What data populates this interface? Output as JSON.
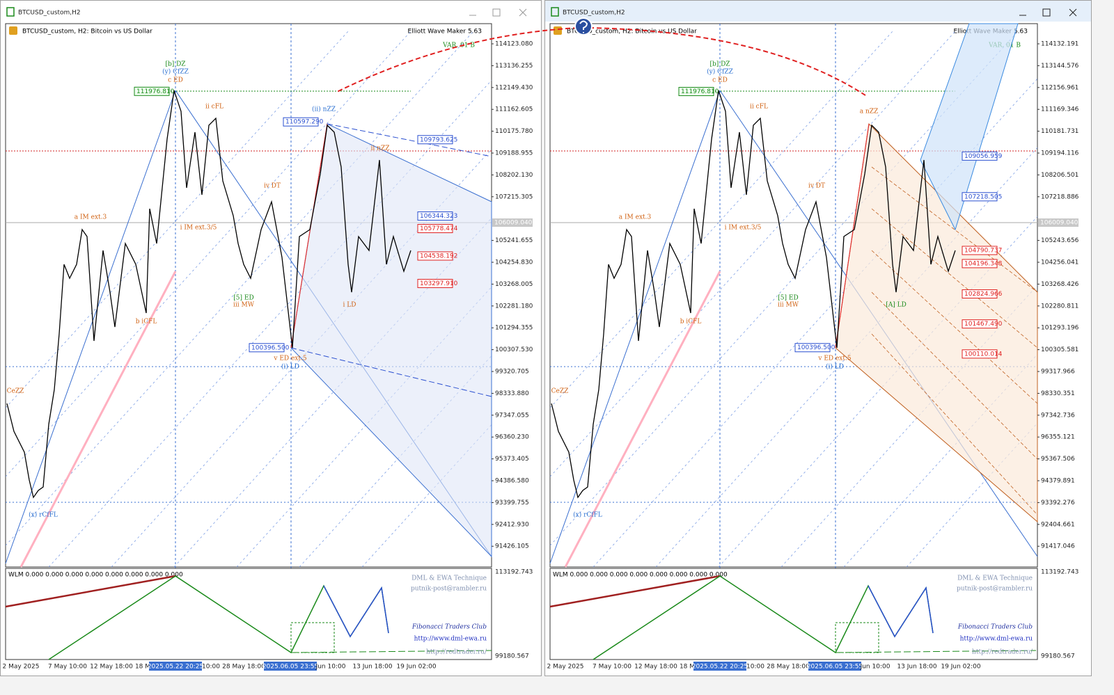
{
  "windows": [
    {
      "title": "BTCUSD_custom,H2",
      "header": "BTCUSD_custom, H2:  Bitcoin vs US Dollar",
      "tool": "Elliott Wave Maker 5.63",
      "variant": "VAR. 01 B",
      "price_axis": [
        "114123.080",
        "113136.255",
        "112149.430",
        "111162.605",
        "110175.780",
        "109188.955",
        "108202.130",
        "107215.305",
        "105241.655",
        "104254.830",
        "103268.005",
        "102281.180",
        "101294.355",
        "100307.530",
        "99320.705",
        "98333.880",
        "97347.055",
        "96360.230",
        "95373.405",
        "94386.580",
        "93399.755",
        "92412.930",
        "91426.105"
      ],
      "current_price": "106009.040",
      "price_tags": [
        {
          "label": "111976.810",
          "color": "#1a8a1a"
        },
        {
          "label": "110597.290",
          "color": "#2a4fd0"
        },
        {
          "label": "109793.625",
          "color": "#2a4fd0"
        },
        {
          "label": "106344.323",
          "color": "#2a4fd0"
        },
        {
          "label": "105778.474",
          "color": "#e02020"
        },
        {
          "label": "104538.192",
          "color": "#e02020"
        },
        {
          "label": "103297.910",
          "color": "#e02020"
        },
        {
          "label": "100396.500",
          "color": "#2a4fd0"
        }
      ],
      "annotations": [
        {
          "text": "[b] DZ",
          "color": "#1a8a1a"
        },
        {
          "text": "(y) CfZZ",
          "color": "#2a6fd0"
        },
        {
          "text": "c ED",
          "color": "#d06010"
        },
        {
          "text": "ii cFL",
          "color": "#d06010"
        },
        {
          "text": "(ii) nZZ",
          "color": "#2a6fd0"
        },
        {
          "text": "ii nZZ",
          "color": "#d06010"
        },
        {
          "text": "iv DT",
          "color": "#d06010"
        },
        {
          "text": "a IM ext.3",
          "color": "#d06010"
        },
        {
          "text": "i IM ext.3/5",
          "color": "#d06010"
        },
        {
          "text": "b iCFL",
          "color": "#d06010"
        },
        {
          "text": "CeZZ",
          "color": "#d06010"
        },
        {
          "text": "(x) rCfFL",
          "color": "#2a6fd0"
        },
        {
          "text": "v ED ext.5",
          "color": "#d06010"
        },
        {
          "text": "(i) LD",
          "color": "#2a6fd0"
        },
        {
          "text": "iii MW",
          "color": "#d06010"
        },
        {
          "text": "[5] ED",
          "color": "#1a8a1a"
        },
        {
          "text": "i LD",
          "color": "#d06010"
        }
      ],
      "indicator": {
        "readout": "WLM 0.000 0.000 0.000 0.000 0.000 0.000 0.000 0.000",
        "axis": [
          "113192.743",
          "99180.567"
        ],
        "credits": [
          "DML & EWA Technique",
          "putnik-post@rambler.ru",
          "Fibonacci Traders Club",
          "http://www.dml-ewa.ru",
          "http://redtrader.ru/"
        ]
      },
      "date_axis": [
        "2 May 2025",
        "7 May 10:00",
        "12 May 18:00",
        "18 M",
        "2025.05.22 20:25",
        "10:00",
        "28 May 18:00",
        "2025.06.05 23:55",
        "Jun 10:00",
        "13 Jun 18:00",
        "19 Jun 02:00"
      ]
    },
    {
      "title": "BTCUSD_custom,H2",
      "header": "BTCUSD_custom, H2:  Bitcoin vs US Dollar",
      "tool": "Elliott Wave Maker 5.63",
      "variant": "VAR. 01 B",
      "price_axis": [
        "114132.191",
        "113144.576",
        "112156.961",
        "111169.346",
        "110181.731",
        "109194.116",
        "108206.501",
        "107218.886",
        "105243.656",
        "104256.041",
        "103268.426",
        "102280.811",
        "101293.196",
        "100305.581",
        "99317.966",
        "98330.351",
        "97342.736",
        "96355.121",
        "95367.506",
        "94379.891",
        "93392.276",
        "92404.661",
        "91417.046"
      ],
      "current_price": "106009.040",
      "price_tags": [
        {
          "label": "111976.810",
          "color": "#1a8a1a"
        },
        {
          "label": "109056.959",
          "color": "#2a4fd0"
        },
        {
          "label": "107218.505",
          "color": "#2a4fd0"
        },
        {
          "label": "104790.737",
          "color": "#e02020"
        },
        {
          "label": "104196.348",
          "color": "#e02020"
        },
        {
          "label": "102824.966",
          "color": "#e02020"
        },
        {
          "label": "101467.490",
          "color": "#e02020"
        },
        {
          "label": "100110.014",
          "color": "#e02020"
        },
        {
          "label": "100396.500",
          "color": "#2a4fd0"
        }
      ],
      "annotations": [
        {
          "text": "[b] DZ",
          "color": "#1a8a1a"
        },
        {
          "text": "(y) CfZZ",
          "color": "#2a6fd0"
        },
        {
          "text": "c ED",
          "color": "#d06010"
        },
        {
          "text": "ii cFL",
          "color": "#d06010"
        },
        {
          "text": "a nZZ",
          "color": "#d06010"
        },
        {
          "text": "iv DT",
          "color": "#d06010"
        },
        {
          "text": "a IM ext.3",
          "color": "#d06010"
        },
        {
          "text": "i IM ext.3/5",
          "color": "#d06010"
        },
        {
          "text": "b iCFL",
          "color": "#d06010"
        },
        {
          "text": "CeZZ",
          "color": "#d06010"
        },
        {
          "text": "(x) rCfFL",
          "color": "#2a6fd0"
        },
        {
          "text": "v ED ext.5",
          "color": "#d06010"
        },
        {
          "text": "(i) LD",
          "color": "#2a6fd0"
        },
        {
          "text": "iii MW",
          "color": "#d06010"
        },
        {
          "text": "[5] ED",
          "color": "#1a8a1a"
        },
        {
          "text": "[A] LD",
          "color": "#1a8a1a"
        }
      ],
      "indicator": {
        "readout": "WLM 0.000 0.000 0.000 0.000 0.000 0.000 0.000 0.000",
        "axis": [
          "113192.743",
          "99180.567"
        ],
        "credits": [
          "DML & EWA Technique",
          "putnik-post@rambler.ru",
          "Fibonacci Traders Club",
          "http://www.dml-ewa.ru",
          "http://redtrader.ru/"
        ]
      },
      "date_axis": [
        "2 May 2025",
        "7 May 10:00",
        "12 May 18:00",
        "18 M",
        "2025.05.22 20:25",
        "10:00",
        "28 May 18:00",
        "2025.06.05 23:55",
        "Jun 10:00",
        "13 Jun 18:00",
        "19 Jun 02:00"
      ]
    }
  ]
}
